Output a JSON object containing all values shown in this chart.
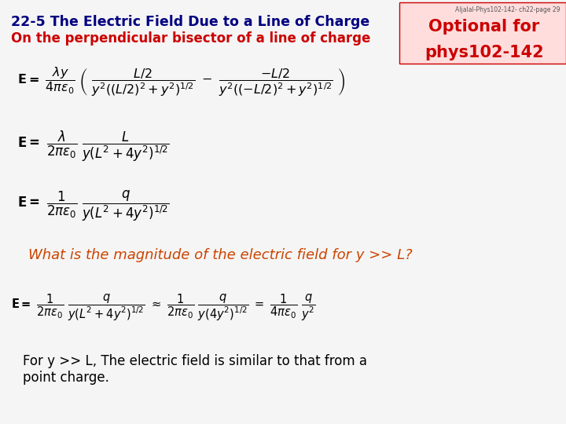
{
  "title_line1": "22-5 The Electric Field Due to a Line of Charge",
  "title_line2": "On the perpendicular bisector of a line of charge",
  "optional_line1": "Optional for",
  "optional_line2": "phys102-142",
  "watermark": "Aljalal-Phys102-142- ch22-page 29",
  "title_color": "#000080",
  "subtitle_color": "#cc0000",
  "optional_color": "#cc0000",
  "optional_bg": "#ffcccc",
  "eq1": "E= \\frac{\\lambda y}{4\\pi\\varepsilon_0} \\left( \\frac{L/2}{y^2((L/2)^2+y^2)^{1/2}} - \\frac{-L/2}{y^2((-L/2)^2+y^2)^{1/2}} \\right)",
  "eq2": "E= \\frac{\\lambda}{2\\pi\\varepsilon_0} \\frac{L}{y(L^2+4y^2)^{1/2}}",
  "eq3": "E= \\frac{1}{2\\pi\\varepsilon_0} \\frac{q}{y(L^2+4y^2)^{1/2}}",
  "question": "What is the magnitude of the electric field for y >> L?",
  "eq4": "E= \\frac{1}{2\\pi\\varepsilon_0} \\frac{q}{y(L^2+4y^2)^{1/2}} \\approx \\frac{1}{2\\pi\\varepsilon_0} \\frac{q}{y(4y^2)^{1/2}} = \\frac{1}{4\\pi\\varepsilon_0} \\frac{q}{y^2}",
  "conclusion": "For y >> L, The electric field is similar to that from a\npoint charge.",
  "bg_color": "#f5f5f5",
  "text_color": "#000000",
  "eq_color": "#000000",
  "question_color": "#cc4400"
}
